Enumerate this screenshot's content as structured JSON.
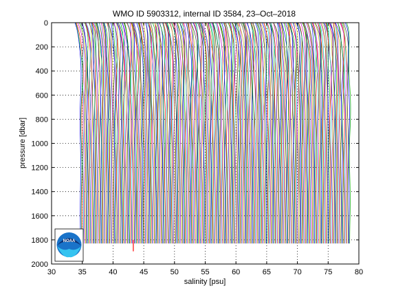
{
  "chart_data": {
    "type": "line",
    "title": "WMO ID 5903312, internal ID 3584, 23–Oct–2018",
    "xlabel": "salinity [psu]",
    "ylabel": "pressure [dbar]",
    "xlim": [
      30,
      80
    ],
    "ylim": [
      0,
      2000
    ],
    "y_reversed": true,
    "grid": true,
    "grid_style": "dotted",
    "x_ticks": [
      30,
      35,
      40,
      45,
      50,
      55,
      60,
      65,
      70,
      75,
      80
    ],
    "y_ticks": [
      0,
      200,
      400,
      600,
      800,
      1000,
      1200,
      1400,
      1600,
      1800,
      2000
    ],
    "profiles": {
      "count": 275,
      "first_offset_salinity": 34.7,
      "offset_step_salinity": 0.16,
      "deep_pressure": 1830,
      "surface_salinity_anomaly": -0.6,
      "colors": [
        "#0000ff",
        "#00aa00",
        "#ff0000",
        "#00bfbf",
        "#bf00bf",
        "#bfbf00",
        "#404040"
      ]
    },
    "outlier": {
      "salinity": 43.3,
      "pressure_top": 1800,
      "pressure_bottom": 1895,
      "color": "#ff0000"
    }
  },
  "logo": {
    "name": "noaa-logo",
    "text": "NOAA"
  }
}
